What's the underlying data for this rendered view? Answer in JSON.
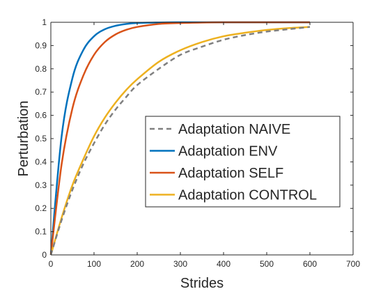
{
  "chart_data": {
    "type": "line",
    "xlabel": "Strides",
    "ylabel": "Perturbation",
    "xlim": [
      0,
      700
    ],
    "ylim": [
      0,
      1
    ],
    "xticks": [
      "0",
      "100",
      "200",
      "300",
      "400",
      "500",
      "600",
      "700"
    ],
    "yticks": [
      "0",
      "0.1",
      "0.2",
      "0.3",
      "0.4",
      "0.5",
      "0.6",
      "0.7",
      "0.8",
      "0.9",
      "1"
    ],
    "grid": false,
    "legend_position": "center-right",
    "x": [
      0,
      25,
      50,
      75,
      100,
      125,
      150,
      175,
      200,
      250,
      300,
      350,
      400,
      450,
      500,
      550,
      600
    ],
    "series": [
      {
        "name": "Adaptation NAIVE",
        "color": "#808080",
        "style": "dashed",
        "values": [
          0,
          0.15,
          0.28,
          0.39,
          0.48,
          0.56,
          0.625,
          0.68,
          0.73,
          0.8,
          0.86,
          0.895,
          0.925,
          0.945,
          0.96,
          0.97,
          0.98
        ]
      },
      {
        "name": "Adaptation ENV",
        "color": "#0072BD",
        "style": "solid",
        "values": [
          0,
          0.51,
          0.76,
          0.88,
          0.94,
          0.97,
          0.985,
          0.993,
          0.997,
          0.999,
          1,
          1,
          1,
          1,
          1,
          1,
          1
        ]
      },
      {
        "name": "Adaptation SELF",
        "color": "#D95319",
        "style": "solid",
        "values": [
          0,
          0.39,
          0.63,
          0.77,
          0.86,
          0.915,
          0.948,
          0.968,
          0.98,
          0.993,
          0.997,
          0.999,
          1,
          1,
          1,
          1,
          1
        ]
      },
      {
        "name": "Adaptation CONTROL",
        "color": "#EDB120",
        "style": "solid",
        "values": [
          0,
          0.16,
          0.3,
          0.41,
          0.51,
          0.59,
          0.655,
          0.71,
          0.755,
          0.83,
          0.88,
          0.915,
          0.94,
          0.955,
          0.967,
          0.975,
          0.98
        ]
      }
    ]
  }
}
